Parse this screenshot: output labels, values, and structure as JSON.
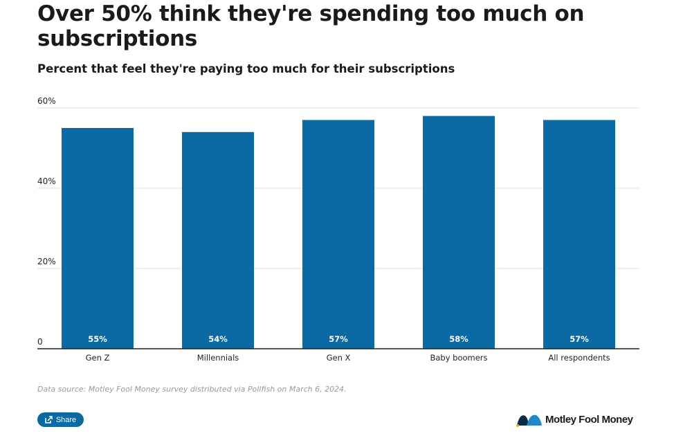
{
  "title": "Over 50% think they're spending too much on subscriptions",
  "subtitle": "Percent that feel they're paying too much for their subscriptions",
  "chart_data": {
    "type": "bar",
    "categories": [
      "Gen Z",
      "Millennials",
      "Gen X",
      "Baby boomers",
      "All respondents"
    ],
    "values": [
      55,
      54,
      57,
      58,
      57
    ],
    "data_labels": [
      "55%",
      "54%",
      "57%",
      "58%",
      "57%"
    ],
    "ylim": [
      0,
      60
    ],
    "yticks": [
      0,
      20,
      40,
      60
    ],
    "ytick_labels": [
      "0",
      "20%",
      "40%",
      "60%"
    ],
    "grid": true,
    "bar_color": "#0b69a3"
  },
  "source": "Data source: Motley Fool Money survey distributed via Pollfish on March 6, 2024.",
  "share_label": "Share",
  "logo_text": "Motley Fool Money"
}
